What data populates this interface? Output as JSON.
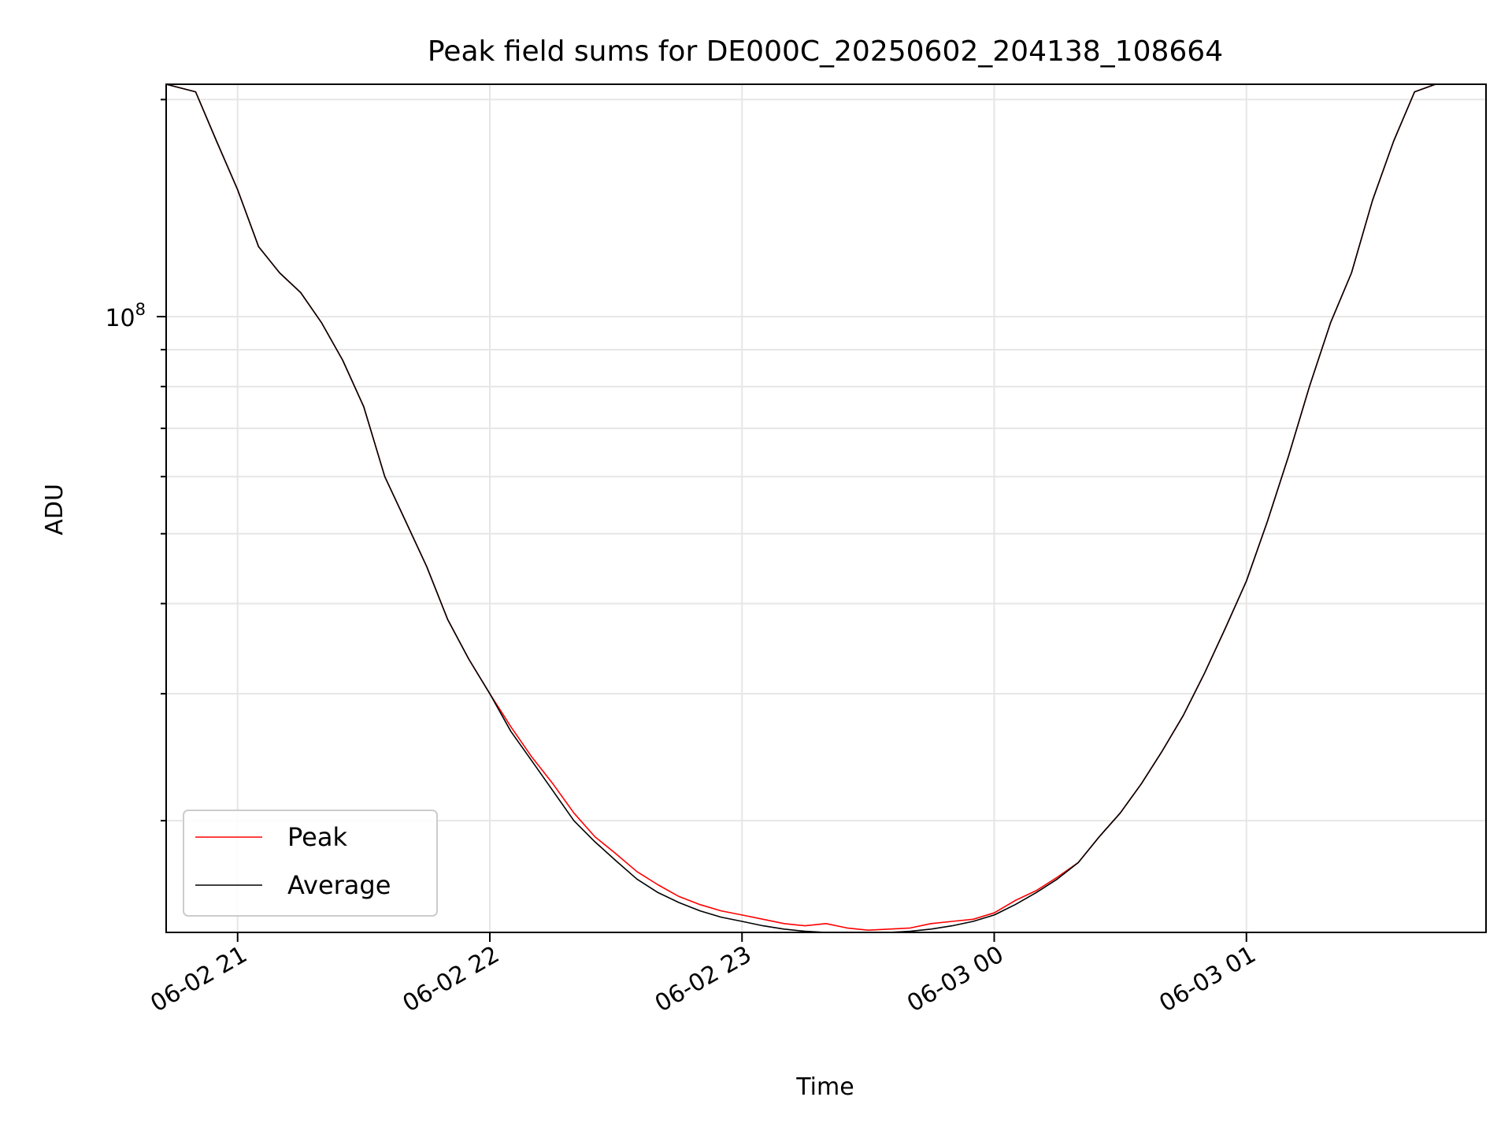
{
  "chart_data": {
    "type": "line",
    "title": "Peak field sums for DE000C_20250602_204138_108664",
    "xlabel": "Time",
    "ylabel": "ADU",
    "y_scale": "log",
    "grid": true,
    "legend_position": "lower-left",
    "x_range": [
      "2025-06-02 20:43",
      "2025-06-03 01:57"
    ],
    "ylim": [
      14000000,
      210000000
    ],
    "x_ticks": [
      {
        "t": "2025-06-02 21:00",
        "label": "06-02 21"
      },
      {
        "t": "2025-06-02 22:00",
        "label": "06-02 22"
      },
      {
        "t": "2025-06-02 23:00",
        "label": "06-02 23"
      },
      {
        "t": "2025-06-03 00:00",
        "label": "06-03 00"
      },
      {
        "t": "2025-06-03 01:00",
        "label": "06-03 01"
      }
    ],
    "y_major_ticks": [
      {
        "value": 100000000,
        "base": "10",
        "exp": "8"
      }
    ],
    "y_minor_ticks": [
      20000000,
      30000000,
      40000000,
      50000000,
      60000000,
      70000000,
      80000000,
      90000000,
      200000000
    ],
    "series": [
      {
        "name": "Peak",
        "color": "#ff0000",
        "x": [
          "2025-06-02 20:43",
          "2025-06-02 20:50",
          "2025-06-02 20:55",
          "2025-06-02 21:00",
          "2025-06-02 21:05",
          "2025-06-02 21:10",
          "2025-06-02 21:15",
          "2025-06-02 21:20",
          "2025-06-02 21:25",
          "2025-06-02 21:30",
          "2025-06-02 21:35",
          "2025-06-02 21:40",
          "2025-06-02 21:45",
          "2025-06-02 21:50",
          "2025-06-02 21:55",
          "2025-06-02 22:00",
          "2025-06-02 22:05",
          "2025-06-02 22:10",
          "2025-06-02 22:15",
          "2025-06-02 22:20",
          "2025-06-02 22:25",
          "2025-06-02 22:30",
          "2025-06-02 22:35",
          "2025-06-02 22:40",
          "2025-06-02 22:45",
          "2025-06-02 22:50",
          "2025-06-02 22:55",
          "2025-06-02 23:00",
          "2025-06-02 23:05",
          "2025-06-02 23:10",
          "2025-06-02 23:15",
          "2025-06-02 23:20",
          "2025-06-02 23:25",
          "2025-06-02 23:30",
          "2025-06-02 23:35",
          "2025-06-02 23:40",
          "2025-06-02 23:45",
          "2025-06-02 23:50",
          "2025-06-02 23:55",
          "2025-06-03 00:00",
          "2025-06-03 00:05",
          "2025-06-03 00:10",
          "2025-06-03 00:15",
          "2025-06-03 00:20",
          "2025-06-03 00:25",
          "2025-06-03 00:30",
          "2025-06-03 00:35",
          "2025-06-03 00:40",
          "2025-06-03 00:45",
          "2025-06-03 00:50",
          "2025-06-03 00:55",
          "2025-06-03 01:00",
          "2025-06-03 01:05",
          "2025-06-03 01:10",
          "2025-06-03 01:15",
          "2025-06-03 01:20",
          "2025-06-03 01:25",
          "2025-06-03 01:30",
          "2025-06-03 01:35",
          "2025-06-03 01:40",
          "2025-06-03 01:45",
          "2025-06-03 01:50",
          "2025-06-03 01:57"
        ],
        "values": [
          210000000,
          205000000,
          175000000,
          150000000,
          125000000,
          115000000,
          108000000,
          98000000,
          87000000,
          75000000,
          60000000,
          52000000,
          45000000,
          38000000,
          33500000,
          30000000,
          27000000,
          24500000,
          22500000,
          20500000,
          19000000,
          18000000,
          17000000,
          16300000,
          15700000,
          15300000,
          15000000,
          14800000,
          14600000,
          14400000,
          14300000,
          14400000,
          14200000,
          14100000,
          14150000,
          14200000,
          14400000,
          14500000,
          14600000,
          14900000,
          15500000,
          16000000,
          16700000,
          17500000,
          19000000,
          20500000,
          22500000,
          25000000,
          28000000,
          32000000,
          37000000,
          43000000,
          52000000,
          64000000,
          80000000,
          98000000,
          115000000,
          145000000,
          175000000,
          205000000,
          210000000,
          210000000,
          210000000
        ]
      },
      {
        "name": "Average",
        "color": "#000000",
        "x": [
          "2025-06-02 20:43",
          "2025-06-02 20:50",
          "2025-06-02 20:55",
          "2025-06-02 21:00",
          "2025-06-02 21:05",
          "2025-06-02 21:10",
          "2025-06-02 21:15",
          "2025-06-02 21:20",
          "2025-06-02 21:25",
          "2025-06-02 21:30",
          "2025-06-02 21:35",
          "2025-06-02 21:40",
          "2025-06-02 21:45",
          "2025-06-02 21:50",
          "2025-06-02 21:55",
          "2025-06-02 22:00",
          "2025-06-02 22:05",
          "2025-06-02 22:10",
          "2025-06-02 22:15",
          "2025-06-02 22:20",
          "2025-06-02 22:25",
          "2025-06-02 22:30",
          "2025-06-02 22:35",
          "2025-06-02 22:40",
          "2025-06-02 22:45",
          "2025-06-02 22:50",
          "2025-06-02 22:55",
          "2025-06-02 23:00",
          "2025-06-02 23:05",
          "2025-06-02 23:10",
          "2025-06-02 23:15",
          "2025-06-02 23:20",
          "2025-06-02 23:25",
          "2025-06-02 23:30",
          "2025-06-02 23:35",
          "2025-06-02 23:40",
          "2025-06-02 23:45",
          "2025-06-02 23:50",
          "2025-06-02 23:55",
          "2025-06-03 00:00",
          "2025-06-03 00:05",
          "2025-06-03 00:10",
          "2025-06-03 00:15",
          "2025-06-03 00:20",
          "2025-06-03 00:25",
          "2025-06-03 00:30",
          "2025-06-03 00:35",
          "2025-06-03 00:40",
          "2025-06-03 00:45",
          "2025-06-03 00:50",
          "2025-06-03 00:55",
          "2025-06-03 01:00",
          "2025-06-03 01:05",
          "2025-06-03 01:10",
          "2025-06-03 01:15",
          "2025-06-03 01:20",
          "2025-06-03 01:25",
          "2025-06-03 01:30",
          "2025-06-03 01:35",
          "2025-06-03 01:40",
          "2025-06-03 01:45",
          "2025-06-03 01:50",
          "2025-06-03 01:57"
        ],
        "values": [
          210000000,
          205000000,
          175000000,
          150000000,
          125000000,
          115000000,
          108000000,
          98000000,
          87000000,
          75000000,
          60000000,
          52000000,
          45000000,
          38000000,
          33500000,
          30000000,
          26600000,
          24200000,
          22000000,
          20000000,
          18700000,
          17600000,
          16600000,
          15900000,
          15400000,
          15000000,
          14700000,
          14500000,
          14300000,
          14150000,
          14050000,
          14000000,
          14000000,
          14000000,
          14000000,
          14050000,
          14150000,
          14300000,
          14500000,
          14800000,
          15300000,
          15900000,
          16600000,
          17500000,
          19000000,
          20500000,
          22500000,
          25000000,
          28000000,
          32000000,
          37000000,
          43000000,
          52000000,
          64000000,
          80000000,
          98000000,
          115000000,
          145000000,
          175000000,
          205000000,
          210000000,
          210000000,
          210000000
        ]
      }
    ]
  }
}
